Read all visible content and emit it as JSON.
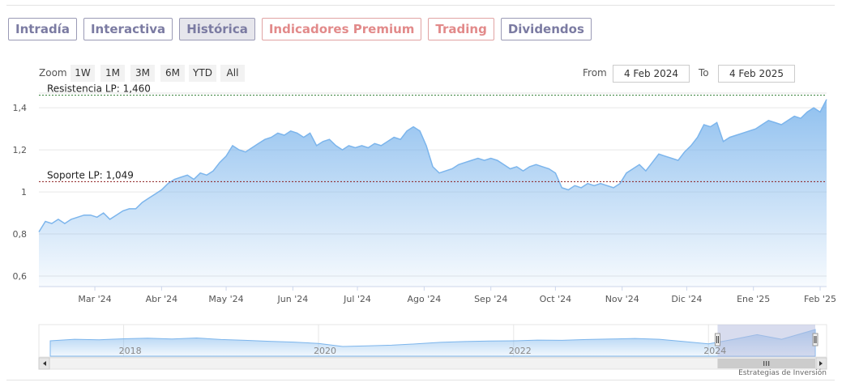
{
  "tabs": [
    {
      "label": "Intradía",
      "style": "normal"
    },
    {
      "label": "Interactiva",
      "style": "normal"
    },
    {
      "label": "Histórica",
      "style": "active"
    },
    {
      "label": "Indicadores Premium",
      "style": "premium"
    },
    {
      "label": "Trading",
      "style": "premium"
    },
    {
      "label": "Dividendos",
      "style": "normal"
    }
  ],
  "zoom": {
    "label": "Zoom",
    "buttons": [
      "1W",
      "1M",
      "3M",
      "6M",
      "YTD",
      "All"
    ]
  },
  "range": {
    "from_label": "From",
    "from_value": "4 Feb 2024",
    "to_label": "To",
    "to_value": "4 Feb 2025"
  },
  "credit": "Estrategias de Inversión",
  "colors": {
    "line": "#7cb5ec",
    "area_top": "#7cb5ec",
    "resistance": "#2e7d32",
    "support": "#8b1a1a",
    "navigator_mask": "#b8c0e0"
  },
  "chart_data": {
    "type": "area",
    "title": "",
    "xlabel": "",
    "ylabel": "",
    "ylim": [
      0.55,
      1.47
    ],
    "yticks": [
      0.6,
      0.8,
      1.0,
      1.2,
      1.4
    ],
    "ytick_labels": [
      "0,6",
      "0,8",
      "1",
      "1,2",
      "1,4"
    ],
    "xticks": [
      {
        "date": "2024-03-01",
        "label": "Mar '24"
      },
      {
        "date": "2024-04-01",
        "label": "Abr '24"
      },
      {
        "date": "2024-05-01",
        "label": "May '24"
      },
      {
        "date": "2024-06-01",
        "label": "Jun '24"
      },
      {
        "date": "2024-07-01",
        "label": "Jul '24"
      },
      {
        "date": "2024-08-01",
        "label": "Ago '24"
      },
      {
        "date": "2024-09-01",
        "label": "Sep '24"
      },
      {
        "date": "2024-10-01",
        "label": "Oct '24"
      },
      {
        "date": "2024-11-01",
        "label": "Nov '24"
      },
      {
        "date": "2024-12-01",
        "label": "Dic '24"
      },
      {
        "date": "2025-01-01",
        "label": "Ene '25"
      },
      {
        "date": "2025-02-01",
        "label": "Feb '25"
      }
    ],
    "xlim": [
      "2024-02-04",
      "2025-02-04"
    ],
    "grid": true,
    "series": [
      {
        "values": [
          [
            "2024-02-04",
            0.81
          ],
          [
            "2024-02-07",
            0.86
          ],
          [
            "2024-02-10",
            0.85
          ],
          [
            "2024-02-13",
            0.87
          ],
          [
            "2024-02-16",
            0.85
          ],
          [
            "2024-02-19",
            0.87
          ],
          [
            "2024-02-22",
            0.88
          ],
          [
            "2024-02-25",
            0.89
          ],
          [
            "2024-02-28",
            0.89
          ],
          [
            "2024-03-02",
            0.88
          ],
          [
            "2024-03-05",
            0.9
          ],
          [
            "2024-03-08",
            0.87
          ],
          [
            "2024-03-11",
            0.89
          ],
          [
            "2024-03-14",
            0.91
          ],
          [
            "2024-03-17",
            0.92
          ],
          [
            "2024-03-20",
            0.92
          ],
          [
            "2024-03-23",
            0.95
          ],
          [
            "2024-03-26",
            0.97
          ],
          [
            "2024-03-29",
            0.99
          ],
          [
            "2024-04-01",
            1.01
          ],
          [
            "2024-04-04",
            1.04
          ],
          [
            "2024-04-07",
            1.06
          ],
          [
            "2024-04-10",
            1.07
          ],
          [
            "2024-04-13",
            1.08
          ],
          [
            "2024-04-16",
            1.06
          ],
          [
            "2024-04-19",
            1.09
          ],
          [
            "2024-04-22",
            1.08
          ],
          [
            "2024-04-25",
            1.1
          ],
          [
            "2024-04-28",
            1.14
          ],
          [
            "2024-05-01",
            1.17
          ],
          [
            "2024-05-04",
            1.22
          ],
          [
            "2024-05-07",
            1.2
          ],
          [
            "2024-05-10",
            1.19
          ],
          [
            "2024-05-13",
            1.21
          ],
          [
            "2024-05-16",
            1.23
          ],
          [
            "2024-05-19",
            1.25
          ],
          [
            "2024-05-22",
            1.26
          ],
          [
            "2024-05-25",
            1.28
          ],
          [
            "2024-05-28",
            1.27
          ],
          [
            "2024-05-31",
            1.29
          ],
          [
            "2024-06-03",
            1.28
          ],
          [
            "2024-06-06",
            1.26
          ],
          [
            "2024-06-09",
            1.28
          ],
          [
            "2024-06-12",
            1.22
          ],
          [
            "2024-06-15",
            1.24
          ],
          [
            "2024-06-18",
            1.25
          ],
          [
            "2024-06-21",
            1.22
          ],
          [
            "2024-06-24",
            1.2
          ],
          [
            "2024-06-27",
            1.22
          ],
          [
            "2024-06-30",
            1.21
          ],
          [
            "2024-07-03",
            1.22
          ],
          [
            "2024-07-06",
            1.21
          ],
          [
            "2024-07-09",
            1.23
          ],
          [
            "2024-07-12",
            1.22
          ],
          [
            "2024-07-15",
            1.24
          ],
          [
            "2024-07-18",
            1.26
          ],
          [
            "2024-07-21",
            1.25
          ],
          [
            "2024-07-24",
            1.29
          ],
          [
            "2024-07-27",
            1.31
          ],
          [
            "2024-07-30",
            1.29
          ],
          [
            "2024-08-02",
            1.22
          ],
          [
            "2024-08-05",
            1.12
          ],
          [
            "2024-08-08",
            1.09
          ],
          [
            "2024-08-11",
            1.1
          ],
          [
            "2024-08-14",
            1.11
          ],
          [
            "2024-08-17",
            1.13
          ],
          [
            "2024-08-20",
            1.14
          ],
          [
            "2024-08-23",
            1.15
          ],
          [
            "2024-08-26",
            1.16
          ],
          [
            "2024-08-29",
            1.15
          ],
          [
            "2024-09-01",
            1.16
          ],
          [
            "2024-09-04",
            1.15
          ],
          [
            "2024-09-07",
            1.13
          ],
          [
            "2024-09-10",
            1.11
          ],
          [
            "2024-09-13",
            1.12
          ],
          [
            "2024-09-16",
            1.1
          ],
          [
            "2024-09-19",
            1.12
          ],
          [
            "2024-09-22",
            1.13
          ],
          [
            "2024-09-25",
            1.12
          ],
          [
            "2024-09-28",
            1.11
          ],
          [
            "2024-10-01",
            1.09
          ],
          [
            "2024-10-04",
            1.02
          ],
          [
            "2024-10-07",
            1.01
          ],
          [
            "2024-10-10",
            1.03
          ],
          [
            "2024-10-13",
            1.02
          ],
          [
            "2024-10-16",
            1.04
          ],
          [
            "2024-10-19",
            1.03
          ],
          [
            "2024-10-22",
            1.04
          ],
          [
            "2024-10-25",
            1.03
          ],
          [
            "2024-10-28",
            1.02
          ],
          [
            "2024-10-31",
            1.04
          ],
          [
            "2024-11-03",
            1.09
          ],
          [
            "2024-11-06",
            1.11
          ],
          [
            "2024-11-09",
            1.13
          ],
          [
            "2024-11-12",
            1.1
          ],
          [
            "2024-11-15",
            1.14
          ],
          [
            "2024-11-18",
            1.18
          ],
          [
            "2024-11-21",
            1.17
          ],
          [
            "2024-11-24",
            1.16
          ],
          [
            "2024-11-27",
            1.15
          ],
          [
            "2024-11-30",
            1.19
          ],
          [
            "2024-12-03",
            1.22
          ],
          [
            "2024-12-06",
            1.26
          ],
          [
            "2024-12-09",
            1.32
          ],
          [
            "2024-12-12",
            1.31
          ],
          [
            "2024-12-15",
            1.33
          ],
          [
            "2024-12-18",
            1.24
          ],
          [
            "2024-12-21",
            1.26
          ],
          [
            "2024-12-24",
            1.27
          ],
          [
            "2024-12-27",
            1.28
          ],
          [
            "2024-12-30",
            1.29
          ],
          [
            "2025-01-02",
            1.3
          ],
          [
            "2025-01-05",
            1.32
          ],
          [
            "2025-01-08",
            1.34
          ],
          [
            "2025-01-11",
            1.33
          ],
          [
            "2025-01-14",
            1.32
          ],
          [
            "2025-01-17",
            1.34
          ],
          [
            "2025-01-20",
            1.36
          ],
          [
            "2025-01-23",
            1.35
          ],
          [
            "2025-01-26",
            1.38
          ],
          [
            "2025-01-29",
            1.4
          ],
          [
            "2025-02-01",
            1.38
          ],
          [
            "2025-02-04",
            1.44
          ]
        ]
      }
    ],
    "annotations": [
      {
        "label": "Resistencia LP: 1,460",
        "y": 1.46,
        "kind": "resistance"
      },
      {
        "label": "Soporte LP: 1,049",
        "y": 1.049,
        "kind": "support"
      }
    ],
    "navigator": {
      "ylim": [
        0.4,
        1.6
      ],
      "year_labels": [
        {
          "date": "2018-01-01",
          "label": "2018"
        },
        {
          "date": "2020-01-01",
          "label": "2020"
        },
        {
          "date": "2022-01-01",
          "label": "2022"
        },
        {
          "date": "2024-01-01",
          "label": "2024"
        }
      ],
      "xlim": [
        "2017-04-01",
        "2025-02-04"
      ],
      "selected": [
        "2024-02-04",
        "2025-02-04"
      ],
      "values": [
        [
          "2017-04-01",
          1.0
        ],
        [
          "2017-07-01",
          1.06
        ],
        [
          "2017-10-01",
          1.04
        ],
        [
          "2018-01-01",
          1.08
        ],
        [
          "2018-04-01",
          1.1
        ],
        [
          "2018-07-01",
          1.07
        ],
        [
          "2018-10-01",
          1.11
        ],
        [
          "2019-01-01",
          1.05
        ],
        [
          "2019-04-01",
          1.02
        ],
        [
          "2019-07-01",
          0.98
        ],
        [
          "2019-10-01",
          0.95
        ],
        [
          "2020-01-01",
          0.9
        ],
        [
          "2020-04-01",
          0.78
        ],
        [
          "2020-07-01",
          0.8
        ],
        [
          "2020-10-01",
          0.83
        ],
        [
          "2021-01-01",
          0.88
        ],
        [
          "2021-04-01",
          0.94
        ],
        [
          "2021-07-01",
          0.97
        ],
        [
          "2021-10-01",
          0.99
        ],
        [
          "2022-01-01",
          1.0
        ],
        [
          "2022-04-01",
          1.03
        ],
        [
          "2022-07-01",
          1.02
        ],
        [
          "2022-10-01",
          1.05
        ],
        [
          "2023-01-01",
          1.07
        ],
        [
          "2023-04-01",
          1.09
        ],
        [
          "2023-07-01",
          1.06
        ],
        [
          "2023-10-01",
          0.97
        ],
        [
          "2024-01-01",
          0.88
        ],
        [
          "2024-04-01",
          1.05
        ],
        [
          "2024-07-01",
          1.24
        ],
        [
          "2024-10-01",
          1.06
        ],
        [
          "2025-02-04",
          1.44
        ]
      ]
    }
  }
}
